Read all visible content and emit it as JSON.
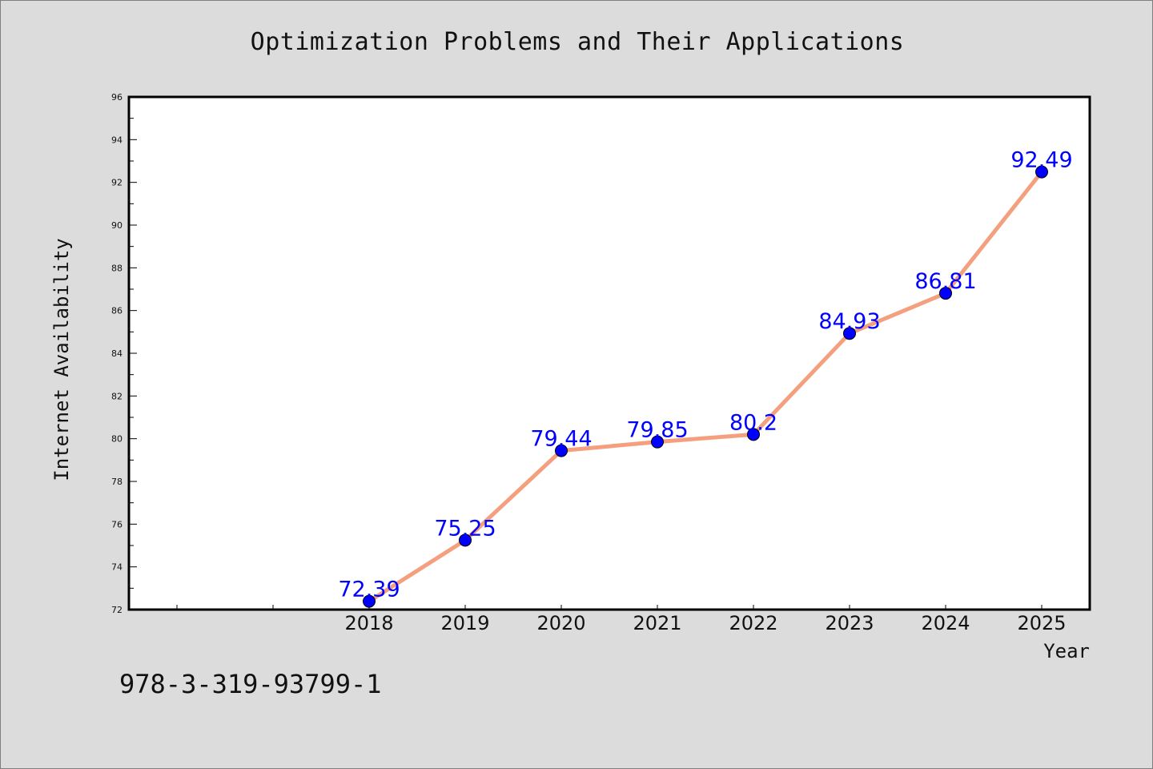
{
  "chart_data": {
    "type": "line",
    "title": "Optimization Problems and Their Applications",
    "xlabel": "Year",
    "ylabel": "Internet Availability",
    "categories": [
      "2018",
      "2019",
      "2020",
      "2021",
      "2022",
      "2023",
      "2024",
      "2025"
    ],
    "series": [
      {
        "values": [
          72.39,
          75.25,
          79.44,
          79.85,
          80.2,
          84.93,
          86.81,
          92.49
        ],
        "labels": [
          "72.39",
          "75.25",
          "79.44",
          "79.85",
          "80.2",
          "84.93",
          "86.81",
          "92.49"
        ]
      }
    ],
    "ylim": [
      72,
      96
    ],
    "yticks": [
      "72",
      "74",
      "76",
      "78",
      "80",
      "82",
      "84",
      "86",
      "88",
      "90",
      "92",
      "94",
      "96"
    ],
    "grid": false,
    "legend": "none",
    "colors": {
      "line": "#f4a07f",
      "marker": "#0000ff",
      "label": "#0000ff",
      "plot_bg": "#ffffff",
      "figure_bg": "#dcdcdc"
    }
  },
  "footer": {
    "isbn": "978-3-319-93799-1"
  }
}
